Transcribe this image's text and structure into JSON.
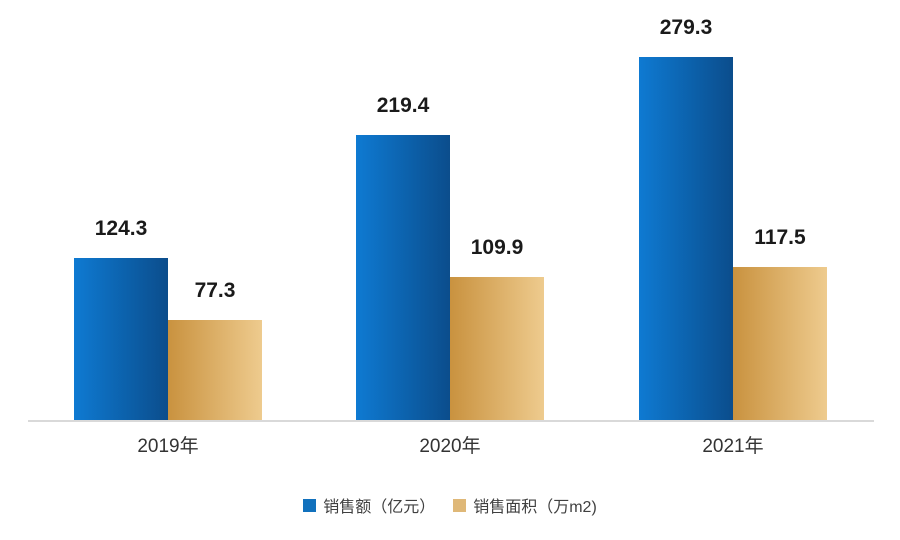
{
  "chart_data": {
    "type": "bar",
    "title": "",
    "xlabel": "",
    "ylabel": "",
    "categories": [
      "2019年",
      "2020年",
      "2021年"
    ],
    "series": [
      {
        "name": "销售额（亿元）",
        "values": [
          124.3,
          219.4,
          279.3
        ],
        "gradient_start": "#0e7ad2",
        "gradient_end": "#0b4d8c",
        "legend_color": "#1171bd"
      },
      {
        "name": "销售面积（万m2)",
        "values": [
          77.3,
          109.9,
          117.5
        ],
        "gradient_start": "#c9923f",
        "gradient_end": "#eecb8e",
        "legend_color": "#dfb878"
      }
    ],
    "data_labels": {
      "series_0": [
        "124.3",
        "219.4",
        "279.3"
      ],
      "series_1": [
        "77.3",
        "109.9",
        "117.5"
      ]
    },
    "ylim": [
      0,
      300
    ],
    "grid": false,
    "legend_position": "bottom",
    "colors": {
      "axis_line": "#d9d9d9",
      "value_label": "#1a1a1a",
      "tick_label": "#333333",
      "legend_label": "#404040",
      "background": "#ffffff"
    }
  }
}
